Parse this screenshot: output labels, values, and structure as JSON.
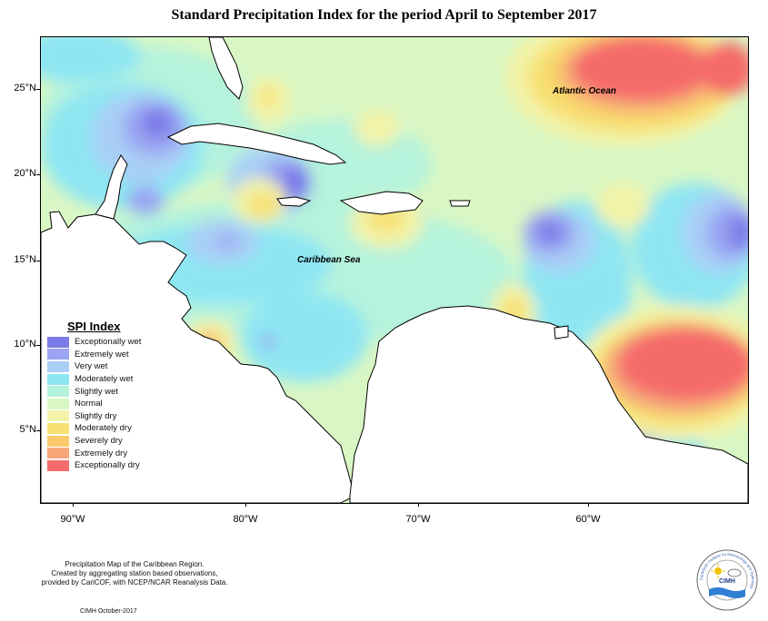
{
  "title": "Standard Precipitation Index for the period April to September 2017",
  "map_labels": {
    "atlantic": "Atlantic Ocean",
    "caribbean": "Caribbean Sea"
  },
  "latitude_ticks": [
    "25°N",
    "20°N",
    "15°N",
    "10°N",
    "5°N"
  ],
  "longitude_ticks": [
    "90°W",
    "80°W",
    "70°W",
    "60°W"
  ],
  "legend": {
    "title": "SPI Index",
    "items": [
      {
        "label": "Exceptionally wet",
        "color": "#7b7be8"
      },
      {
        "label": "Extremely wet",
        "color": "#9aa4f2"
      },
      {
        "label": "Very wet",
        "color": "#a9cff6"
      },
      {
        "label": "Moderately wet",
        "color": "#8fe6f3"
      },
      {
        "label": "Slightly wet",
        "color": "#b5f3dc"
      },
      {
        "label": "Normal",
        "color": "#d9f7c4"
      },
      {
        "label": "Slightly dry",
        "color": "#f2f3a8"
      },
      {
        "label": "Moderately dry",
        "color": "#f7e072"
      },
      {
        "label": "Severely dry",
        "color": "#f9c96b"
      },
      {
        "label": "Extremely dry",
        "color": "#f6a77a"
      },
      {
        "label": "Exceptionally dry",
        "color": "#f56b6b"
      }
    ]
  },
  "footnote": {
    "line1": "Precipitation Map of the Caribbean Region.",
    "line2": "Created by aggregating station based observations,",
    "line3": "provided by CariCOF, with NCEP/NCAR Reanalysis Data."
  },
  "credit": "CIMH October-2017",
  "logo": {
    "text": "CIMH",
    "ring_text": "Caribbean Institute for Meteorology and Hydrology",
    "icons": [
      "sun-icon",
      "cloud-icon",
      "water-waves-icon"
    ]
  }
}
